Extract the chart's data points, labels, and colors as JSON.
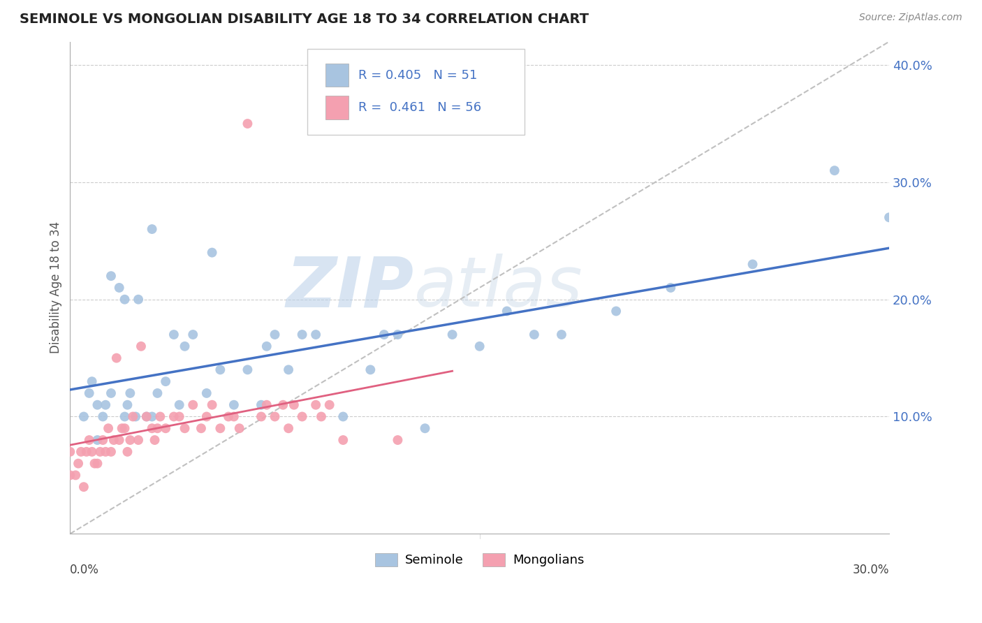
{
  "title": "SEMINOLE VS MONGOLIAN DISABILITY AGE 18 TO 34 CORRELATION CHART",
  "source_text": "Source: ZipAtlas.com",
  "ylabel": "Disability Age 18 to 34",
  "xlim": [
    0.0,
    0.3
  ],
  "ylim": [
    0.0,
    0.42
  ],
  "yticks": [
    0.1,
    0.2,
    0.3,
    0.4
  ],
  "ytick_labels": [
    "10.0%",
    "20.0%",
    "30.0%",
    "40.0%"
  ],
  "seminole_R": 0.405,
  "seminole_N": 51,
  "mongolian_R": 0.461,
  "mongolian_N": 56,
  "seminole_color": "#a8c4e0",
  "mongolian_color": "#f4a0b0",
  "seminole_line_color": "#4472c4",
  "mongolian_line_color": "#e06080",
  "diagonal_color": "#c0c0c0",
  "watermark_color": "#ccd8e8",
  "background_color": "#ffffff",
  "seminole_x": [
    0.005,
    0.007,
    0.008,
    0.01,
    0.01,
    0.012,
    0.013,
    0.015,
    0.015,
    0.018,
    0.02,
    0.02,
    0.021,
    0.022,
    0.024,
    0.025,
    0.028,
    0.03,
    0.03,
    0.032,
    0.035,
    0.038,
    0.04,
    0.042,
    0.045,
    0.05,
    0.052,
    0.055,
    0.06,
    0.065,
    0.07,
    0.072,
    0.075,
    0.08,
    0.085,
    0.09,
    0.1,
    0.11,
    0.115,
    0.12,
    0.13,
    0.14,
    0.15,
    0.16,
    0.17,
    0.18,
    0.2,
    0.22,
    0.25,
    0.28,
    0.3
  ],
  "seminole_y": [
    0.1,
    0.12,
    0.13,
    0.08,
    0.11,
    0.1,
    0.11,
    0.22,
    0.12,
    0.21,
    0.1,
    0.2,
    0.11,
    0.12,
    0.1,
    0.2,
    0.1,
    0.1,
    0.26,
    0.12,
    0.13,
    0.17,
    0.11,
    0.16,
    0.17,
    0.12,
    0.24,
    0.14,
    0.11,
    0.14,
    0.11,
    0.16,
    0.17,
    0.14,
    0.17,
    0.17,
    0.1,
    0.14,
    0.17,
    0.17,
    0.09,
    0.17,
    0.16,
    0.19,
    0.17,
    0.17,
    0.19,
    0.21,
    0.23,
    0.31,
    0.27
  ],
  "mongolian_x": [
    0.0,
    0.0,
    0.002,
    0.003,
    0.004,
    0.005,
    0.006,
    0.007,
    0.008,
    0.009,
    0.01,
    0.011,
    0.012,
    0.013,
    0.014,
    0.015,
    0.016,
    0.017,
    0.018,
    0.019,
    0.02,
    0.021,
    0.022,
    0.023,
    0.025,
    0.026,
    0.028,
    0.03,
    0.031,
    0.032,
    0.033,
    0.035,
    0.038,
    0.04,
    0.042,
    0.045,
    0.048,
    0.05,
    0.052,
    0.055,
    0.058,
    0.06,
    0.062,
    0.065,
    0.07,
    0.072,
    0.075,
    0.078,
    0.08,
    0.082,
    0.085,
    0.09,
    0.092,
    0.095,
    0.1,
    0.12
  ],
  "mongolian_y": [
    0.05,
    0.07,
    0.05,
    0.06,
    0.07,
    0.04,
    0.07,
    0.08,
    0.07,
    0.06,
    0.06,
    0.07,
    0.08,
    0.07,
    0.09,
    0.07,
    0.08,
    0.15,
    0.08,
    0.09,
    0.09,
    0.07,
    0.08,
    0.1,
    0.08,
    0.16,
    0.1,
    0.09,
    0.08,
    0.09,
    0.1,
    0.09,
    0.1,
    0.1,
    0.09,
    0.11,
    0.09,
    0.1,
    0.11,
    0.09,
    0.1,
    0.1,
    0.09,
    0.35,
    0.1,
    0.11,
    0.1,
    0.11,
    0.09,
    0.11,
    0.1,
    0.11,
    0.1,
    0.11,
    0.08,
    0.08
  ]
}
